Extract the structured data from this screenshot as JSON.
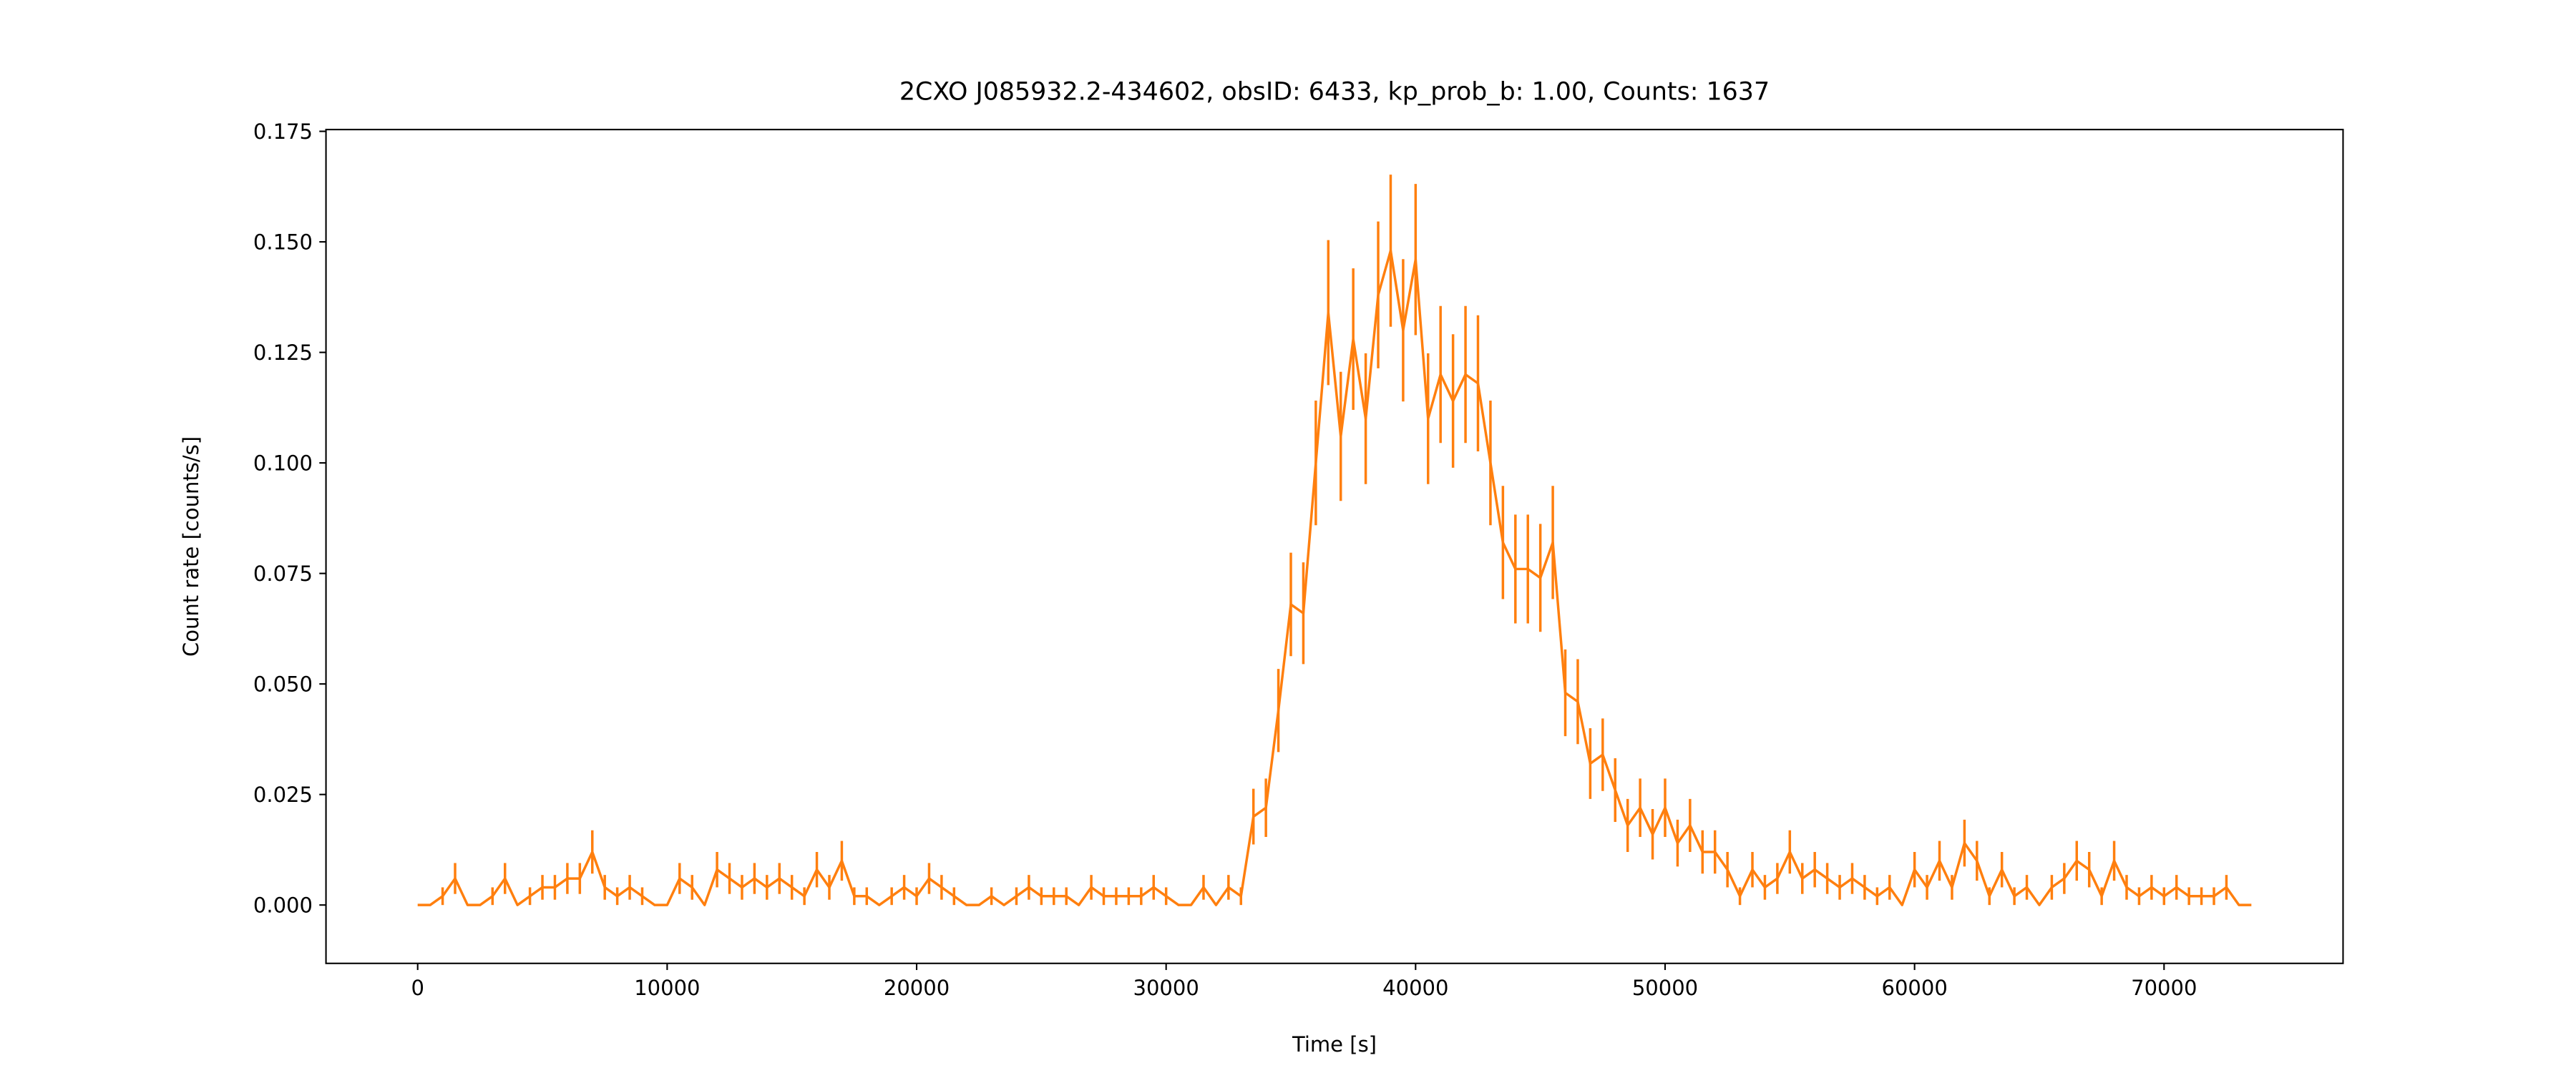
{
  "chart_data": {
    "type": "errorbar",
    "title": "2CXO J085932.2-434602, obsID: 6433, kp_prob_b: 1.00, Counts: 1637",
    "x_label": "Time [s]",
    "y_label": "Count rate [counts/s]",
    "x": [
      0,
      500,
      1000,
      1500,
      2000,
      2500,
      3000,
      3500,
      4000,
      4500,
      5000,
      5500,
      6000,
      6500,
      7000,
      7500,
      8000,
      8500,
      9000,
      9500,
      10000,
      10500,
      11000,
      11500,
      12000,
      12500,
      13000,
      13500,
      14000,
      14500,
      15000,
      15500,
      16000,
      16500,
      17000,
      17500,
      18000,
      18500,
      19000,
      19500,
      20000,
      20500,
      21000,
      21500,
      22000,
      22500,
      23000,
      23500,
      24000,
      24500,
      25000,
      25500,
      26000,
      26500,
      27000,
      27500,
      28000,
      28500,
      29000,
      29500,
      30000,
      30500,
      31000,
      31500,
      32000,
      32500,
      33000,
      33500,
      34000,
      34500,
      35000,
      35500,
      36000,
      36500,
      37000,
      37500,
      38000,
      38500,
      39000,
      39500,
      40000,
      40500,
      41000,
      41500,
      42000,
      42500,
      43000,
      43500,
      44000,
      44500,
      45000,
      45500,
      46000,
      46500,
      47000,
      47500,
      48000,
      48500,
      49000,
      49500,
      50000,
      50500,
      51000,
      51500,
      52000,
      52500,
      53000,
      53500,
      54000,
      54500,
      55000,
      55500,
      56000,
      56500,
      57000,
      57500,
      58000,
      58500,
      59000,
      59500,
      60000,
      60500,
      61000,
      61500,
      62000,
      62500,
      63000,
      63500,
      64000,
      64500,
      65000,
      65500,
      66000,
      66500,
      67000,
      67500,
      68000,
      68500,
      69000,
      69500,
      70000,
      70500,
      71000,
      71500,
      72000,
      72500,
      73000,
      73500
    ],
    "series": [
      {
        "color": "#ff7f0e",
        "values": [
          0,
          0,
          0.002,
          0.006,
          0,
          0,
          0.002,
          0.006,
          0,
          0.002,
          0.004,
          0.004,
          0.006,
          0.006,
          0.012,
          0.004,
          0.002,
          0.004,
          0.002,
          0,
          0,
          0.006,
          0.004,
          0,
          0.008,
          0.006,
          0.004,
          0.006,
          0.004,
          0.006,
          0.004,
          0.002,
          0.008,
          0.004,
          0.01,
          0.002,
          0.002,
          0,
          0.002,
          0.004,
          0.002,
          0.006,
          0.004,
          0.002,
          0,
          0,
          0.002,
          0,
          0.002,
          0.004,
          0.002,
          0.002,
          0.002,
          0,
          0.004,
          0.002,
          0.002,
          0.002,
          0.002,
          0.004,
          0.002,
          0,
          0,
          0.004,
          0,
          0.004,
          0.002,
          0.02,
          0.022,
          0.044,
          0.068,
          0.066,
          0.1,
          0.134,
          0.106,
          0.128,
          0.11,
          0.138,
          0.148,
          0.13,
          0.146,
          0.11,
          0.12,
          0.114,
          0.12,
          0.118,
          0.1,
          0.082,
          0.076,
          0.076,
          0.074,
          0.082,
          0.048,
          0.046,
          0.032,
          0.034,
          0.026,
          0.018,
          0.022,
          0.016,
          0.022,
          0.014,
          0.018,
          0.012,
          0.012,
          0.008,
          0.002,
          0.008,
          0.004,
          0.006,
          0.012,
          0.006,
          0.008,
          0.006,
          0.004,
          0.006,
          0.004,
          0.002,
          0.004,
          0,
          0.008,
          0.004,
          0.01,
          0.004,
          0.014,
          0.01,
          0.002,
          0.008,
          0.002,
          0.004,
          0,
          0.004,
          0.006,
          0.01,
          0.008,
          0.002,
          0.01,
          0.004,
          0.002,
          0.004,
          0.002,
          0.004,
          0.002,
          0.002,
          0.002,
          0.004,
          0,
          0
        ],
        "errors": [
          0,
          0,
          0.002,
          0.0035,
          0,
          0,
          0.002,
          0.0035,
          0,
          0.002,
          0.0028,
          0.0028,
          0.0035,
          0.0035,
          0.0049,
          0.0028,
          0.002,
          0.0028,
          0.002,
          0,
          0,
          0.0035,
          0.0028,
          0,
          0.004,
          0.0035,
          0.0028,
          0.0035,
          0.0028,
          0.0035,
          0.0028,
          0.002,
          0.004,
          0.0028,
          0.0045,
          0.002,
          0.002,
          0,
          0.002,
          0.0028,
          0.002,
          0.0035,
          0.0028,
          0.002,
          0,
          0,
          0.002,
          0,
          0.002,
          0.0028,
          0.002,
          0.002,
          0.002,
          0,
          0.0028,
          0.002,
          0.002,
          0.002,
          0.002,
          0.0028,
          0.002,
          0,
          0,
          0.0028,
          0,
          0.0028,
          0.002,
          0.0063,
          0.0066,
          0.0094,
          0.0117,
          0.0115,
          0.0141,
          0.0164,
          0.0146,
          0.016,
          0.0148,
          0.0166,
          0.0172,
          0.0161,
          0.0171,
          0.0148,
          0.0155,
          0.0151,
          0.0155,
          0.0154,
          0.0141,
          0.0128,
          0.0123,
          0.0123,
          0.0122,
          0.0128,
          0.0098,
          0.0096,
          0.008,
          0.0082,
          0.0072,
          0.006,
          0.0066,
          0.0057,
          0.0066,
          0.0053,
          0.006,
          0.0049,
          0.0049,
          0.004,
          0.002,
          0.004,
          0.0028,
          0.0035,
          0.0049,
          0.0035,
          0.004,
          0.0035,
          0.0028,
          0.0035,
          0.0028,
          0.002,
          0.0028,
          0,
          0.004,
          0.0028,
          0.0045,
          0.0028,
          0.0053,
          0.0045,
          0.002,
          0.004,
          0.002,
          0.0028,
          0,
          0.0028,
          0.0035,
          0.0045,
          0.004,
          0.002,
          0.0045,
          0.0028,
          0.002,
          0.0028,
          0.002,
          0.0028,
          0.002,
          0.002,
          0.002,
          0.0028,
          0,
          0
        ]
      }
    ],
    "xlim": [
      -3675,
      77175
    ],
    "ylim": [
      -0.0132,
      0.1754
    ],
    "xticks": [
      0,
      10000,
      20000,
      30000,
      40000,
      50000,
      60000,
      70000
    ],
    "yticks": [
      {
        "value": 0,
        "label": "0.000"
      },
      {
        "value": 0.025,
        "label": "0.025"
      },
      {
        "value": 0.05,
        "label": "0.050"
      },
      {
        "value": 0.075,
        "label": "0.075"
      },
      {
        "value": 0.1,
        "label": "0.100"
      },
      {
        "value": 0.125,
        "label": "0.125"
      },
      {
        "value": 0.15,
        "label": "0.150"
      },
      {
        "value": 0.175,
        "label": "0.175"
      }
    ]
  }
}
